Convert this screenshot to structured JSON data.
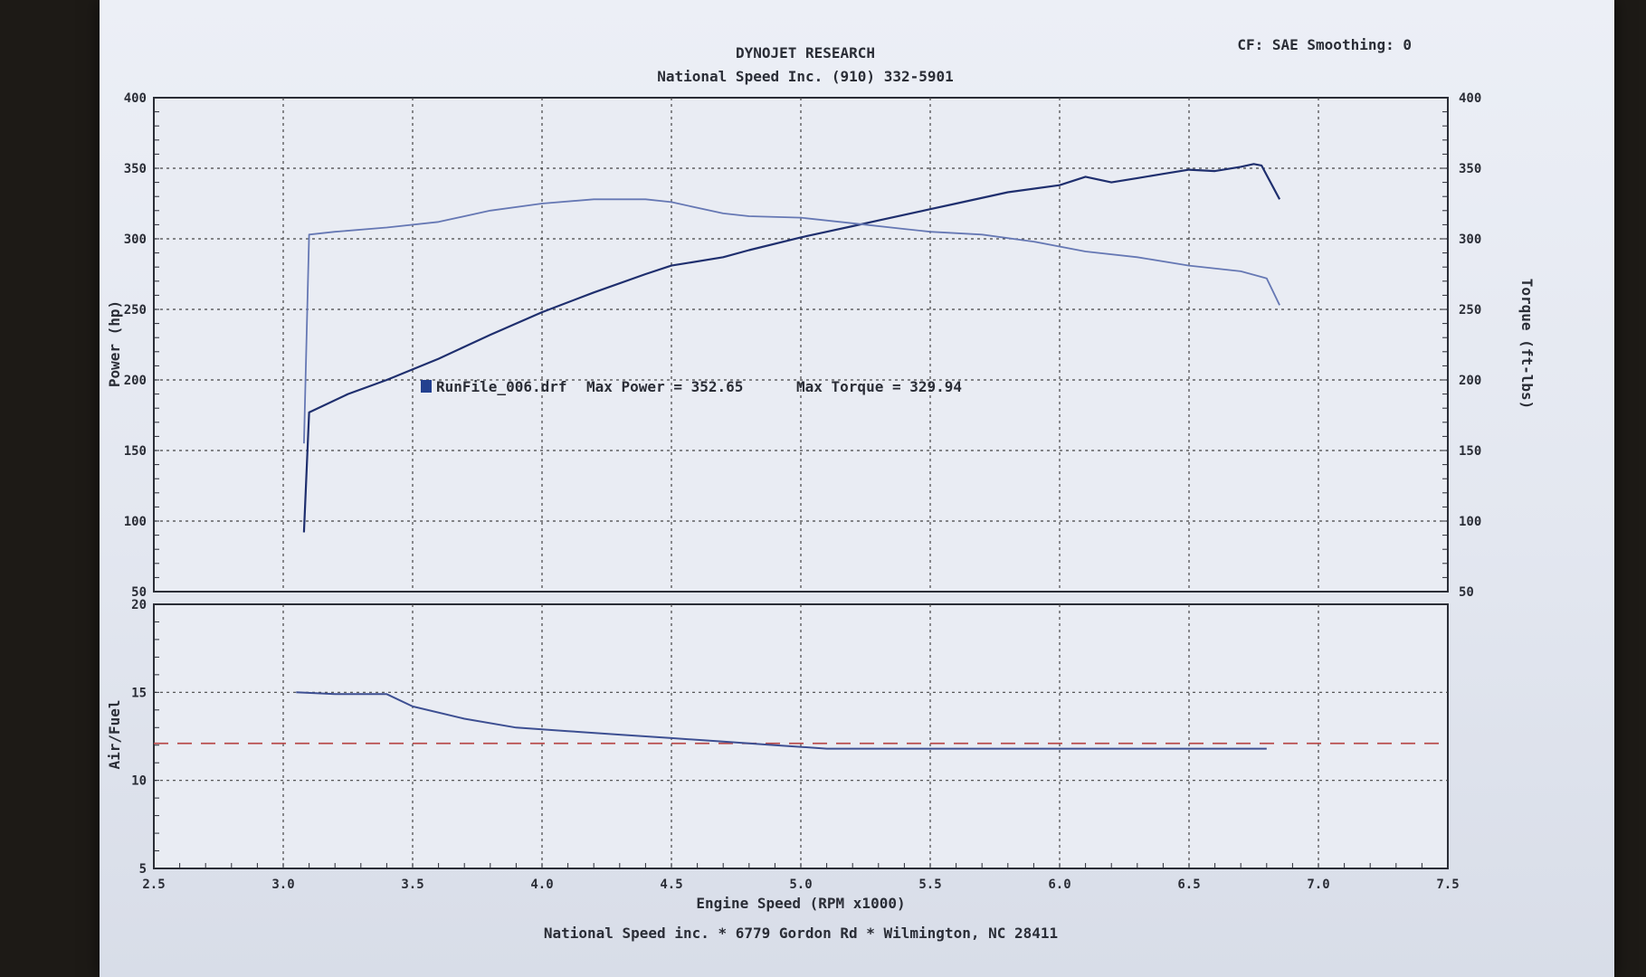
{
  "header": {
    "title": "DYNOJET RESEARCH",
    "subtitle": "National Speed Inc. (910) 332-5901",
    "settings": "CF: SAE  Smoothing: 0"
  },
  "footer": {
    "address": "National Speed inc. * 6779 Gordon Rd * Wilmington, NC 28411"
  },
  "legend": {
    "run_file": "RunFile_006.drf",
    "max_power_label": "Max Power = 352.65",
    "max_torque_label": "Max Torque = 329.94"
  },
  "colors": {
    "power_line": "#1f2f6e",
    "torque_line": "#6678b4",
    "afr_line": "#3d4f92",
    "afr_target": "#b84a4a",
    "grid": "#444444",
    "legend_marker": "#23408f"
  },
  "chart_data": [
    {
      "type": "line",
      "title": "",
      "xlabel": "",
      "ylabel": "Power (hp)",
      "y2label": "Torque (ft-lbs)",
      "xlim": [
        2.5,
        7.5
      ],
      "ylim": [
        50,
        400
      ],
      "y2lim": [
        50,
        400
      ],
      "xticks": [
        2.5,
        3.0,
        3.5,
        4.0,
        4.5,
        5.0,
        5.5,
        6.0,
        6.5,
        7.0,
        7.5
      ],
      "yticks": [
        50,
        100,
        150,
        200,
        250,
        300,
        350,
        400
      ],
      "grid": true,
      "series": [
        {
          "name": "Max Power = 352.65",
          "axis": "left",
          "x": [
            3.08,
            3.1,
            3.25,
            3.4,
            3.6,
            3.8,
            4.0,
            4.2,
            4.4,
            4.5,
            4.7,
            4.8,
            5.0,
            5.2,
            5.3,
            5.5,
            5.6,
            5.8,
            6.0,
            6.1,
            6.2,
            6.3,
            6.4,
            6.5,
            6.6,
            6.7,
            6.75,
            6.78,
            6.85
          ],
          "values": [
            92,
            177,
            190,
            200,
            215,
            232,
            248,
            262,
            275,
            281,
            287,
            292,
            301,
            309,
            313,
            321,
            325,
            333,
            338,
            344,
            340,
            343,
            346,
            349,
            348,
            351,
            353,
            352,
            328
          ]
        },
        {
          "name": "Max Torque = 329.94",
          "axis": "right",
          "x": [
            3.08,
            3.1,
            3.2,
            3.4,
            3.6,
            3.8,
            4.0,
            4.2,
            4.4,
            4.5,
            4.7,
            4.8,
            5.0,
            5.2,
            5.4,
            5.5,
            5.7,
            5.9,
            6.1,
            6.3,
            6.5,
            6.7,
            6.8,
            6.85
          ],
          "values": [
            155,
            303,
            305,
            308,
            312,
            320,
            325,
            328,
            328,
            326,
            318,
            316,
            315,
            311,
            307,
            305,
            303,
            298,
            291,
            287,
            281,
            277,
            272,
            253
          ]
        }
      ]
    },
    {
      "type": "line",
      "title": "",
      "xlabel": "Engine Speed (RPM x1000)",
      "ylabel": "Air/Fuel",
      "xlim": [
        2.5,
        7.5
      ],
      "ylim": [
        5,
        20
      ],
      "xticks": [
        2.5,
        3.0,
        3.5,
        4.0,
        4.5,
        5.0,
        5.5,
        6.0,
        6.5,
        7.0,
        7.5
      ],
      "yticks": [
        5,
        10,
        15,
        20
      ],
      "grid": true,
      "target_afr": 12.1,
      "series": [
        {
          "name": "",
          "x": [
            3.05,
            3.2,
            3.4,
            3.5,
            3.7,
            3.9,
            4.1,
            4.3,
            4.5,
            4.7,
            4.9,
            5.1,
            5.3,
            5.5,
            5.8,
            6.0,
            6.2,
            6.4,
            6.6,
            6.8
          ],
          "values": [
            15.0,
            14.9,
            14.9,
            14.2,
            13.5,
            13.0,
            12.8,
            12.6,
            12.4,
            12.2,
            12.0,
            11.8,
            11.8,
            11.8,
            11.8,
            11.8,
            11.8,
            11.8,
            11.8,
            11.8
          ]
        }
      ]
    }
  ]
}
